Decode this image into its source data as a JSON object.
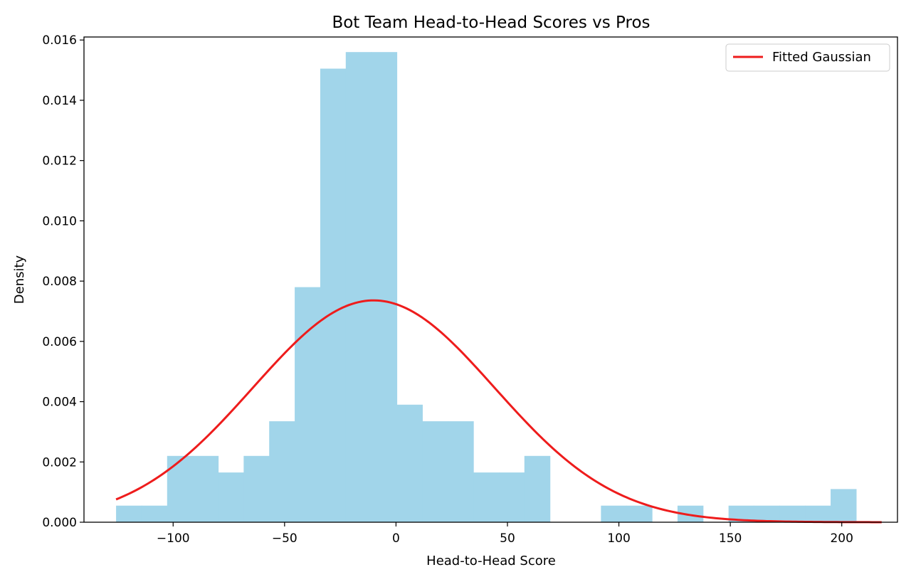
{
  "chart_data": {
    "type": "histogram",
    "title": "Bot Team Head-to-Head Scores vs Pros",
    "xlabel": "Head-to-Head Score",
    "ylabel": "Density",
    "xlim": [
      -140,
      225
    ],
    "ylim": [
      0,
      0.0161
    ],
    "grid": false,
    "legend_position": "top-right",
    "x_ticks": [
      -100,
      -50,
      0,
      50,
      100,
      150,
      200
    ],
    "x_tick_labels": [
      "−100",
      "−50",
      "0",
      "50",
      "100",
      "150",
      "200"
    ],
    "y_ticks": [
      0.0,
      0.002,
      0.004,
      0.006,
      0.008,
      0.01,
      0.012,
      0.014,
      0.016
    ],
    "y_tick_labels": [
      "0.000",
      "0.002",
      "0.004",
      "0.006",
      "0.008",
      "0.010",
      "0.012",
      "0.014",
      "0.016"
    ],
    "bins": {
      "start": -125.6,
      "width": 11.45,
      "densities": [
        0.00055,
        0.00055,
        0.0022,
        0.0022,
        0.00165,
        0.0022,
        0.00335,
        0.0078,
        0.01505,
        0.0156,
        0.0156,
        0.0039,
        0.00335,
        0.00335,
        0.00165,
        0.00165,
        0.0022,
        0,
        0,
        0.00055,
        0.00055,
        0,
        0.00055,
        0,
        0.00055,
        0.00055,
        0.00055,
        0.00055,
        0.0011
      ]
    },
    "series": [
      {
        "name": "Fitted Gaussian",
        "type": "line",
        "mean": -10,
        "std": 54.2,
        "x_range": [
          -125.6,
          217.9
        ]
      }
    ],
    "colors": {
      "bars": "#a1d5ea",
      "curve": "#ee1c1c",
      "axes": "#000000"
    }
  }
}
